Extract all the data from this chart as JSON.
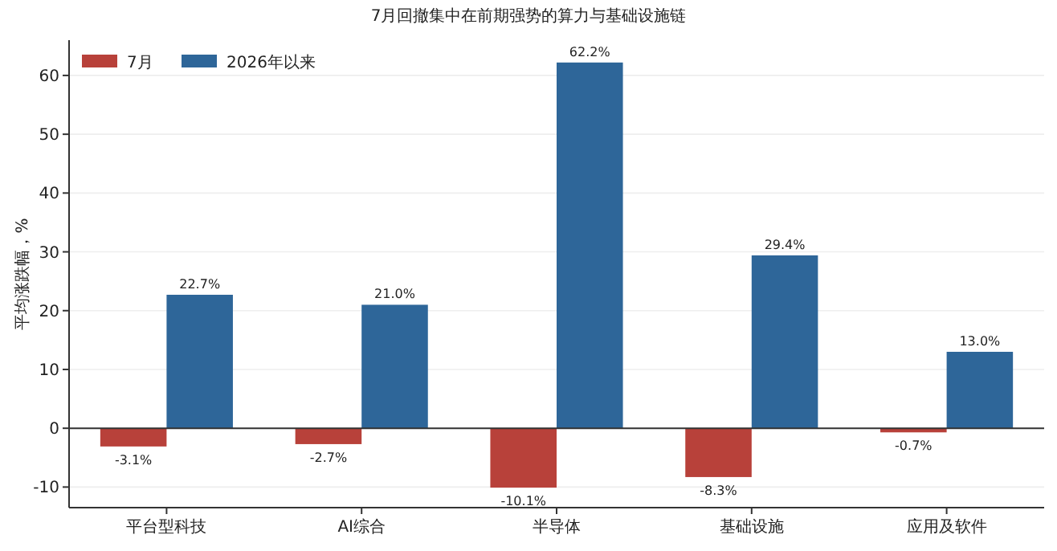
{
  "chart_data": {
    "type": "bar",
    "title": "7月回撤集中在前期强势的算力与基础设施链",
    "ylabel": "平均涨跌幅，%",
    "categories": [
      "平台型科技",
      "AI综合",
      "半导体",
      "基础设施",
      "应用及软件"
    ],
    "series": [
      {
        "name": "7月",
        "color": "#b8413a",
        "values": [
          -3.1,
          -2.7,
          -10.1,
          -8.3,
          -0.7
        ],
        "value_labels": [
          "-3.1%",
          "-2.7%",
          "-10.1%",
          "-8.3%",
          "-0.7%"
        ]
      },
      {
        "name": "2026年以来",
        "color": "#2e6699",
        "values": [
          22.7,
          21.0,
          62.2,
          29.4,
          13.0
        ],
        "value_labels": [
          "22.7%",
          "21.0%",
          "62.2%",
          "29.4%",
          "13.0%"
        ]
      }
    ],
    "ylim": [
      -13.5,
      66
    ],
    "yticks": [
      -10,
      0,
      10,
      20,
      30,
      40,
      50,
      60
    ],
    "grid": "y",
    "legend": "top left"
  }
}
